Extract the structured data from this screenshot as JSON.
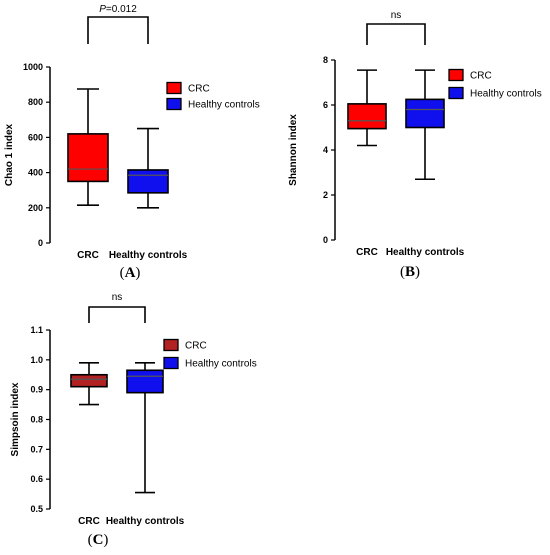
{
  "chart_data": [
    {
      "type": "box",
      "panel": "(A)",
      "ylabel": "Chao 1 index",
      "ylim": [
        0,
        1000
      ],
      "yticks": [
        0,
        200,
        400,
        600,
        800,
        1000
      ],
      "categories": [
        "CRC",
        "Healthy controls"
      ],
      "annotation": "P=0.012",
      "series": [
        {
          "name": "CRC",
          "color": "#ff0000",
          "min": 215,
          "q1": 350,
          "median": 420,
          "q3": 620,
          "max": 875
        },
        {
          "name": "Healthy controls",
          "color": "#1010ee",
          "min": 200,
          "q1": 285,
          "median": 385,
          "q3": 415,
          "max": 650
        }
      ]
    },
    {
      "type": "box",
      "panel": "(B)",
      "ylabel": "Shannon index",
      "ylim": [
        0,
        8
      ],
      "yticks": [
        0,
        2,
        4,
        6,
        8
      ],
      "categories": [
        "CRC",
        "Healthy controls"
      ],
      "annotation": "ns",
      "series": [
        {
          "name": "CRC",
          "color": "#ff0000",
          "min": 4.2,
          "q1": 4.95,
          "median": 5.3,
          "q3": 6.05,
          "max": 7.55
        },
        {
          "name": "Healthy controls",
          "color": "#1010ee",
          "min": 2.7,
          "q1": 5.0,
          "median": 5.8,
          "q3": 6.25,
          "max": 7.55
        }
      ]
    },
    {
      "type": "box",
      "panel": "(C)",
      "ylabel": "Simpsoin index",
      "ylim": [
        0.5,
        1.1
      ],
      "yticks": [
        0.5,
        0.6,
        0.7,
        0.8,
        0.9,
        1.0,
        1.1
      ],
      "ytick_labels": [
        "0.5",
        "0.6",
        "0.7",
        "0.8",
        "0.9",
        "1.0",
        "1.1"
      ],
      "categories": [
        "CRC",
        "Healthy controls"
      ],
      "annotation": "ns",
      "series": [
        {
          "name": "CRC",
          "color": "#b22222",
          "min": 0.85,
          "q1": 0.91,
          "median": 0.935,
          "q3": 0.95,
          "max": 0.99
        },
        {
          "name": "Healthy controls",
          "color": "#1010ee",
          "min": 0.555,
          "q1": 0.89,
          "median": 0.945,
          "q3": 0.965,
          "max": 0.99
        }
      ]
    }
  ]
}
